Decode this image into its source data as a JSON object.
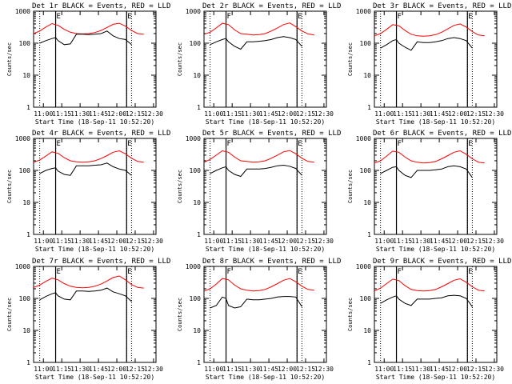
{
  "figure": {
    "y_axis_label": "Counts/sec",
    "x_axis_label": "Start Time (18-Sep-11 10:52:20)",
    "x_tick_labels": [
      "11:00",
      "11:15",
      "11:30",
      "11:45",
      "12:00",
      "12:15",
      "12:30"
    ],
    "y_tick_labels": [
      "1",
      "10",
      "100",
      "1000"
    ],
    "marker_labels": [
      "E",
      "F",
      "E"
    ],
    "colors": {
      "events": "#000000",
      "lld": "#ff0000",
      "background": "#ffffff"
    }
  },
  "chart_data": [
    {
      "type": "line",
      "title": "Det 1r BLACK = Events, RED = LLD",
      "xlabel": "Start Time (18-Sep-11 10:52:20)",
      "ylabel": "Counts/sec",
      "x_unit": "minutes after 10:52:20",
      "xlim": [
        0,
        100
      ],
      "ylim": [
        1,
        1000
      ],
      "yscale": "log",
      "vlines": [
        {
          "x": 18,
          "label": "E",
          "style": "solid"
        },
        {
          "x": 76,
          "label": "E",
          "style": "solid"
        }
      ],
      "dotted_vlines": [
        5,
        18,
        76,
        80
      ],
      "series": [
        {
          "name": "RED = LLD",
          "color": "#ff0000",
          "x": [
            0,
            5,
            10,
            15,
            20,
            25,
            30,
            35,
            40,
            45,
            50,
            55,
            60,
            65,
            70,
            75,
            80,
            85,
            90
          ],
          "y": [
            200,
            240,
            320,
            410,
            360,
            270,
            220,
            200,
            195,
            200,
            215,
            250,
            310,
            390,
            420,
            340,
            250,
            200,
            190
          ]
        },
        {
          "name": "BLACK = Events",
          "color": "#000000",
          "x": [
            5,
            10,
            15,
            18,
            20,
            25,
            30,
            35,
            40,
            45,
            50,
            55,
            60,
            65,
            70,
            75,
            80
          ],
          "y": [
            100,
            120,
            140,
            150,
            120,
            90,
            95,
            190,
            190,
            185,
            190,
            200,
            240,
            170,
            140,
            130,
            90
          ]
        }
      ]
    },
    {
      "type": "line",
      "title": "Det 2r BLACK = Events, RED = LLD",
      "xlabel": "Start Time (18-Sep-11 10:52:20)",
      "ylabel": "Counts/sec",
      "x_unit": "minutes after 10:52:20",
      "xlim": [
        0,
        100
      ],
      "ylim": [
        1,
        1000
      ],
      "yscale": "log",
      "vlines": [
        {
          "x": 18,
          "label": "F",
          "style": "solid"
        },
        {
          "x": 76,
          "label": "E",
          "style": "solid"
        }
      ],
      "dotted_vlines": [
        5,
        18,
        76,
        80
      ],
      "series": [
        {
          "name": "RED = LLD",
          "color": "#ff0000",
          "x": [
            0,
            5,
            10,
            15,
            20,
            25,
            30,
            35,
            40,
            45,
            50,
            55,
            60,
            65,
            70,
            75,
            80,
            85,
            90
          ],
          "y": [
            190,
            220,
            300,
            420,
            380,
            260,
            200,
            190,
            180,
            185,
            200,
            240,
            300,
            380,
            430,
            330,
            240,
            195,
            180
          ]
        },
        {
          "name": "BLACK = Events",
          "color": "#000000",
          "x": [
            5,
            10,
            15,
            18,
            20,
            25,
            30,
            35,
            40,
            45,
            50,
            55,
            60,
            65,
            70,
            75,
            80
          ],
          "y": [
            90,
            110,
            130,
            140,
            110,
            80,
            65,
            110,
            110,
            115,
            120,
            130,
            150,
            160,
            150,
            130,
            80
          ]
        }
      ]
    },
    {
      "type": "line",
      "title": "Det 3r BLACK = Events, RED = LLD",
      "xlabel": "Start Time (18-Sep-11 10:52:20)",
      "ylabel": "Counts/sec",
      "x_unit": "minutes after 10:52:20",
      "xlim": [
        0,
        100
      ],
      "ylim": [
        1,
        1000
      ],
      "yscale": "log",
      "vlines": [
        {
          "x": 18,
          "label": "F",
          "style": "solid"
        },
        {
          "x": 76,
          "label": "E",
          "style": "solid"
        }
      ],
      "dotted_vlines": [
        5,
        18,
        76,
        80
      ],
      "series": [
        {
          "name": "RED = LLD",
          "color": "#ff0000",
          "x": [
            0,
            5,
            10,
            15,
            20,
            25,
            30,
            35,
            40,
            45,
            50,
            55,
            60,
            65,
            70,
            75,
            80,
            85,
            90
          ],
          "y": [
            170,
            200,
            270,
            380,
            350,
            250,
            190,
            170,
            165,
            170,
            185,
            220,
            280,
            360,
            400,
            320,
            230,
            180,
            170
          ]
        },
        {
          "name": "BLACK = Events",
          "color": "#000000",
          "x": [
            5,
            10,
            15,
            18,
            20,
            25,
            30,
            35,
            40,
            45,
            50,
            55,
            60,
            65,
            70,
            75,
            80
          ],
          "y": [
            70,
            90,
            120,
            130,
            100,
            75,
            60,
            110,
            105,
            105,
            110,
            120,
            140,
            150,
            140,
            120,
            70
          ]
        }
      ]
    },
    {
      "type": "line",
      "title": "Det 4r BLACK = Events, RED = LLD",
      "xlabel": "Start Time (18-Sep-11 10:52:20)",
      "ylabel": "Counts/sec",
      "x_unit": "minutes after 10:52:20",
      "xlim": [
        0,
        100
      ],
      "ylim": [
        1,
        1000
      ],
      "yscale": "log",
      "vlines": [
        {
          "x": 18,
          "label": "E",
          "style": "solid"
        },
        {
          "x": 76,
          "label": "E",
          "style": "solid"
        }
      ],
      "dotted_vlines": [
        5,
        18,
        76,
        80
      ],
      "series": [
        {
          "name": "RED = LLD",
          "color": "#ff0000",
          "x": [
            0,
            5,
            10,
            15,
            20,
            25,
            30,
            35,
            40,
            45,
            50,
            55,
            60,
            65,
            70,
            75,
            80,
            85,
            90
          ],
          "y": [
            180,
            210,
            280,
            380,
            340,
            250,
            200,
            185,
            180,
            185,
            200,
            235,
            290,
            370,
            410,
            330,
            240,
            190,
            180
          ]
        },
        {
          "name": "BLACK = Events",
          "color": "#000000",
          "x": [
            5,
            10,
            15,
            18,
            20,
            25,
            30,
            35,
            40,
            45,
            50,
            55,
            60,
            65,
            70,
            75,
            80
          ],
          "y": [
            80,
            100,
            115,
            120,
            95,
            75,
            70,
            140,
            140,
            140,
            145,
            150,
            170,
            130,
            110,
            100,
            70
          ]
        }
      ]
    },
    {
      "type": "line",
      "title": "Det 5r BLACK = Events, RED = LLD",
      "xlabel": "Start Time (18-Sep-11 10:52:20)",
      "ylabel": "Counts/sec",
      "x_unit": "minutes after 10:52:20",
      "xlim": [
        0,
        100
      ],
      "ylim": [
        1,
        1000
      ],
      "yscale": "log",
      "vlines": [
        {
          "x": 18,
          "label": "F",
          "style": "solid"
        },
        {
          "x": 76,
          "label": "E",
          "style": "solid"
        }
      ],
      "dotted_vlines": [
        5,
        18,
        76,
        80
      ],
      "series": [
        {
          "name": "RED = LLD",
          "color": "#ff0000",
          "x": [
            0,
            5,
            10,
            15,
            20,
            25,
            30,
            35,
            40,
            45,
            50,
            55,
            60,
            65,
            70,
            75,
            80,
            85,
            90
          ],
          "y": [
            180,
            220,
            300,
            410,
            370,
            260,
            200,
            190,
            180,
            185,
            200,
            240,
            300,
            380,
            420,
            330,
            240,
            190,
            180
          ]
        },
        {
          "name": "BLACK = Events",
          "color": "#000000",
          "x": [
            5,
            10,
            15,
            18,
            20,
            25,
            30,
            35,
            40,
            45,
            50,
            55,
            60,
            65,
            70,
            75,
            80
          ],
          "y": [
            80,
            100,
            120,
            130,
            100,
            75,
            65,
            110,
            110,
            110,
            115,
            125,
            140,
            145,
            135,
            115,
            70
          ]
        }
      ]
    },
    {
      "type": "line",
      "title": "Det 6r BLACK = Events, RED = LLD",
      "xlabel": "Start Time (18-Sep-11 10:52:20)",
      "ylabel": "Counts/sec",
      "x_unit": "minutes after 10:52:20",
      "xlim": [
        0,
        100
      ],
      "ylim": [
        1,
        1000
      ],
      "yscale": "log",
      "vlines": [
        {
          "x": 18,
          "label": "F",
          "style": "solid"
        },
        {
          "x": 76,
          "label": "E",
          "style": "solid"
        }
      ],
      "dotted_vlines": [
        5,
        18,
        76,
        80
      ],
      "series": [
        {
          "name": "RED = LLD",
          "color": "#ff0000",
          "x": [
            0,
            5,
            10,
            15,
            20,
            25,
            30,
            35,
            40,
            45,
            50,
            55,
            60,
            65,
            70,
            75,
            80,
            85,
            90
          ],
          "y": [
            170,
            200,
            280,
            400,
            370,
            260,
            200,
            180,
            170,
            175,
            190,
            230,
            290,
            370,
            410,
            320,
            230,
            180,
            170
          ]
        },
        {
          "name": "BLACK = Events",
          "color": "#000000",
          "x": [
            5,
            10,
            15,
            18,
            20,
            25,
            30,
            35,
            40,
            45,
            50,
            55,
            60,
            65,
            70,
            75,
            80
          ],
          "y": [
            80,
            100,
            125,
            130,
            100,
            70,
            60,
            100,
            100,
            100,
            105,
            110,
            130,
            140,
            130,
            110,
            60
          ]
        }
      ]
    },
    {
      "type": "line",
      "title": "Det 7r BLACK = Events, RED = LLD",
      "xlabel": "Start Time (18-Sep-11 10:52:20)",
      "ylabel": "Counts/sec",
      "x_unit": "minutes after 10:52:20",
      "xlim": [
        0,
        100
      ],
      "ylim": [
        1,
        1000
      ],
      "yscale": "log",
      "vlines": [
        {
          "x": 18,
          "label": "E",
          "style": "solid"
        },
        {
          "x": 76,
          "label": "E",
          "style": "solid"
        }
      ],
      "dotted_vlines": [
        5,
        18,
        76,
        80
      ],
      "series": [
        {
          "name": "RED = LLD",
          "color": "#ff0000",
          "x": [
            0,
            5,
            10,
            15,
            20,
            25,
            30,
            35,
            40,
            45,
            50,
            55,
            60,
            65,
            70,
            75,
            80,
            85,
            90
          ],
          "y": [
            220,
            260,
            340,
            430,
            380,
            290,
            240,
            220,
            215,
            220,
            240,
            280,
            350,
            450,
            500,
            380,
            270,
            220,
            210
          ]
        },
        {
          "name": "BLACK = Events",
          "color": "#000000",
          "x": [
            5,
            10,
            15,
            18,
            20,
            25,
            30,
            35,
            40,
            45,
            50,
            55,
            60,
            65,
            70,
            75,
            80
          ],
          "y": [
            90,
            115,
            140,
            150,
            120,
            95,
            90,
            170,
            170,
            165,
            170,
            180,
            210,
            160,
            140,
            120,
            80
          ]
        }
      ]
    },
    {
      "type": "line",
      "title": "Det 8r BLACK = Events, RED = LLD",
      "xlabel": "Start Time (18-Sep-11 10:52:20)",
      "ylabel": "Counts/sec",
      "x_unit": "minutes after 10:52:20",
      "xlim": [
        0,
        100
      ],
      "ylim": [
        1,
        1000
      ],
      "yscale": "log",
      "vlines": [
        {
          "x": 18,
          "label": "F",
          "style": "solid"
        },
        {
          "x": 76,
          "label": "E",
          "style": "solid"
        }
      ],
      "dotted_vlines": [
        5,
        18,
        76,
        80
      ],
      "series": [
        {
          "name": "RED = LLD",
          "color": "#ff0000",
          "x": [
            0,
            5,
            10,
            15,
            20,
            25,
            30,
            35,
            40,
            45,
            50,
            55,
            60,
            65,
            70,
            75,
            80,
            85,
            90
          ],
          "y": [
            170,
            200,
            280,
            420,
            380,
            260,
            200,
            180,
            170,
            175,
            190,
            230,
            290,
            370,
            420,
            330,
            240,
            190,
            180
          ]
        },
        {
          "name": "BLACK = Events",
          "color": "#000000",
          "x": [
            5,
            10,
            15,
            18,
            20,
            25,
            30,
            35,
            40,
            45,
            50,
            55,
            60,
            65,
            70,
            75,
            80
          ],
          "y": [
            50,
            60,
            110,
            100,
            60,
            50,
            55,
            95,
            90,
            90,
            95,
            100,
            110,
            115,
            115,
            110,
            55
          ]
        }
      ]
    },
    {
      "type": "line",
      "title": "Det 9r BLACK = Events, RED = LLD",
      "xlabel": "Start Time (18-Sep-11 10:52:20)",
      "ylabel": "Counts/sec",
      "x_unit": "minutes after 10:52:20",
      "xlim": [
        0,
        100
      ],
      "ylim": [
        1,
        1000
      ],
      "yscale": "log",
      "vlines": [
        {
          "x": 18,
          "label": "F",
          "style": "solid"
        },
        {
          "x": 76,
          "label": "E",
          "style": "solid"
        }
      ],
      "dotted_vlines": [
        5,
        18,
        76,
        80
      ],
      "series": [
        {
          "name": "RED = LLD",
          "color": "#ff0000",
          "x": [
            0,
            5,
            10,
            15,
            20,
            25,
            30,
            35,
            40,
            45,
            50,
            55,
            60,
            65,
            70,
            75,
            80,
            85,
            90
          ],
          "y": [
            170,
            210,
            290,
            400,
            360,
            250,
            190,
            175,
            170,
            175,
            190,
            230,
            290,
            370,
            410,
            320,
            230,
            180,
            170
          ]
        },
        {
          "name": "BLACK = Events",
          "color": "#000000",
          "x": [
            5,
            10,
            15,
            18,
            20,
            25,
            30,
            35,
            40,
            45,
            50,
            55,
            60,
            65,
            70,
            75,
            80
          ],
          "y": [
            70,
            90,
            110,
            120,
            95,
            70,
            60,
            95,
            95,
            95,
            100,
            105,
            120,
            125,
            120,
            100,
            55
          ]
        }
      ]
    }
  ]
}
